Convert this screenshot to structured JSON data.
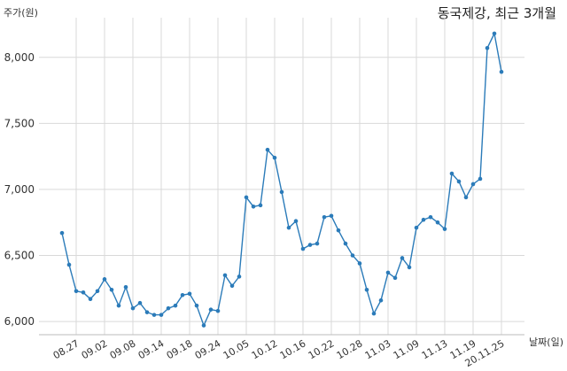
{
  "chart_data": {
    "type": "line",
    "title": "동국제강, 최근 3개월",
    "ylabel": "주가(원)",
    "xlabel": "날짜(일)",
    "ylim": [
      5900,
      8300
    ],
    "yticks": [
      6000,
      6500,
      7000,
      7500,
      8000
    ],
    "ytick_labels": [
      "6,000",
      "6,500",
      "7,000",
      "7,500",
      "8,000"
    ],
    "xticks": [
      {
        "label": "08.27",
        "index": 2
      },
      {
        "label": "09.02",
        "index": 6
      },
      {
        "label": "09.08",
        "index": 10
      },
      {
        "label": "09.14",
        "index": 14
      },
      {
        "label": "09.18",
        "index": 18
      },
      {
        "label": "09.24",
        "index": 22
      },
      {
        "label": "10.05",
        "index": 26
      },
      {
        "label": "10.12",
        "index": 30
      },
      {
        "label": "10.16",
        "index": 34
      },
      {
        "label": "10.22",
        "index": 38
      },
      {
        "label": "10.28",
        "index": 42
      },
      {
        "label": "11.03",
        "index": 46
      },
      {
        "label": "11.09",
        "index": 50
      },
      {
        "label": "11.13",
        "index": 54
      },
      {
        "label": "11.19",
        "index": 58
      },
      {
        "label": "20.11.25",
        "index": 62
      }
    ],
    "grid": true,
    "color": "#2b7bb9",
    "values": [
      6670,
      6430,
      6230,
      6220,
      6170,
      6230,
      6320,
      6240,
      6120,
      6260,
      6100,
      6140,
      6070,
      6050,
      6050,
      6100,
      6120,
      6200,
      6210,
      6120,
      5970,
      6090,
      6080,
      6350,
      6270,
      6340,
      6940,
      6870,
      6880,
      7300,
      7240,
      6980,
      6710,
      6760,
      6550,
      6580,
      6590,
      6790,
      6800,
      6690,
      6590,
      6500,
      6440,
      6240,
      6060,
      6160,
      6370,
      6330,
      6480,
      6410,
      6710,
      6770,
      6790,
      6750,
      6700,
      7120,
      7060,
      6940,
      7040,
      7080,
      8070,
      8180,
      7890
    ]
  }
}
